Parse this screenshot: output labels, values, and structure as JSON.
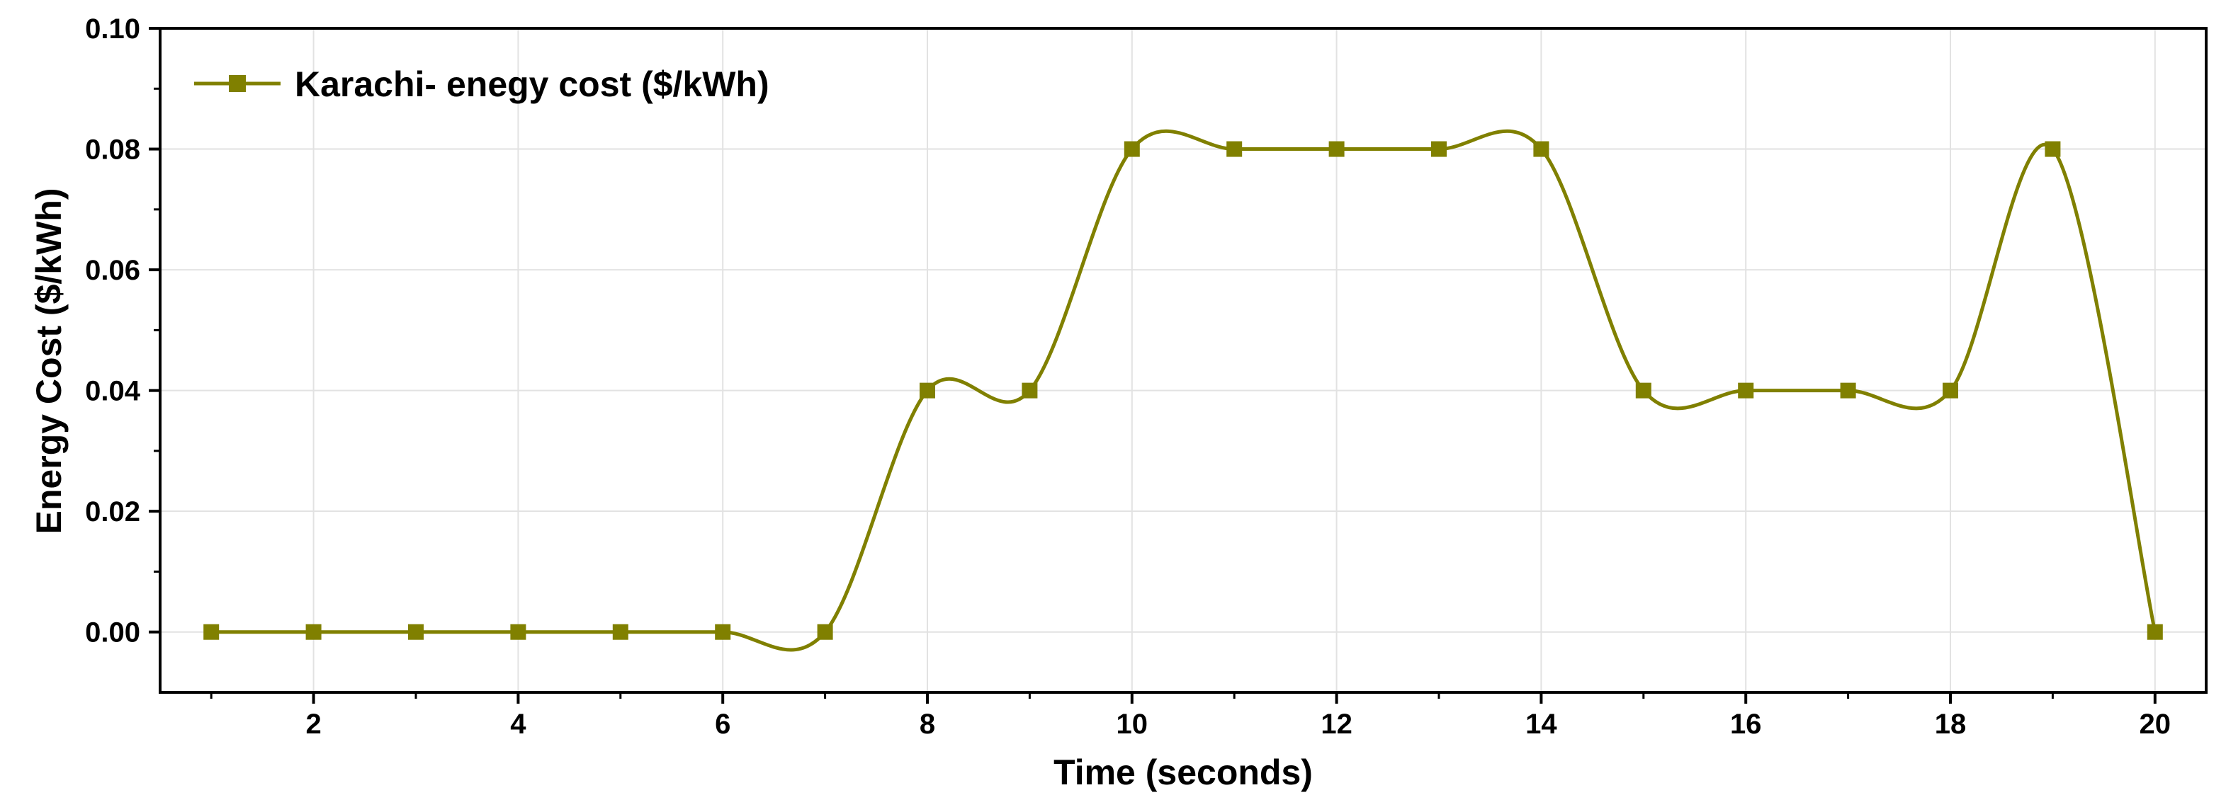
{
  "chart_data": {
    "type": "line",
    "xlabel": "Time (seconds)",
    "ylabel": "Energy Cost ($/kWh)",
    "xlim": [
      0.5,
      20.5
    ],
    "ylim": [
      -0.01,
      0.1
    ],
    "x_ticks": [
      2,
      4,
      6,
      8,
      10,
      12,
      14,
      16,
      18,
      20
    ],
    "y_ticks": [
      0.0,
      0.02,
      0.04,
      0.06,
      0.08,
      0.1
    ],
    "x_tick_labels": [
      "2",
      "4",
      "6",
      "8",
      "10",
      "12",
      "14",
      "16",
      "18",
      "20"
    ],
    "y_tick_labels": [
      "0.00",
      "0.02",
      "0.04",
      "0.06",
      "0.08",
      "0.10"
    ],
    "grid": true,
    "legend_position": "top-left",
    "smoothed": true,
    "marker": "square",
    "series": [
      {
        "name": "Karachi- enegy cost ($/kWh)",
        "color": "#808000",
        "x": [
          1,
          2,
          3,
          4,
          5,
          6,
          7,
          8,
          9,
          10,
          11,
          12,
          13,
          14,
          15,
          16,
          17,
          18,
          19,
          20
        ],
        "values": [
          0.0,
          0.0,
          0.0,
          0.0,
          0.0,
          0.0,
          0.0,
          0.04,
          0.04,
          0.08,
          0.08,
          0.08,
          0.08,
          0.08,
          0.04,
          0.04,
          0.04,
          0.04,
          0.08,
          0.0
        ]
      }
    ]
  }
}
